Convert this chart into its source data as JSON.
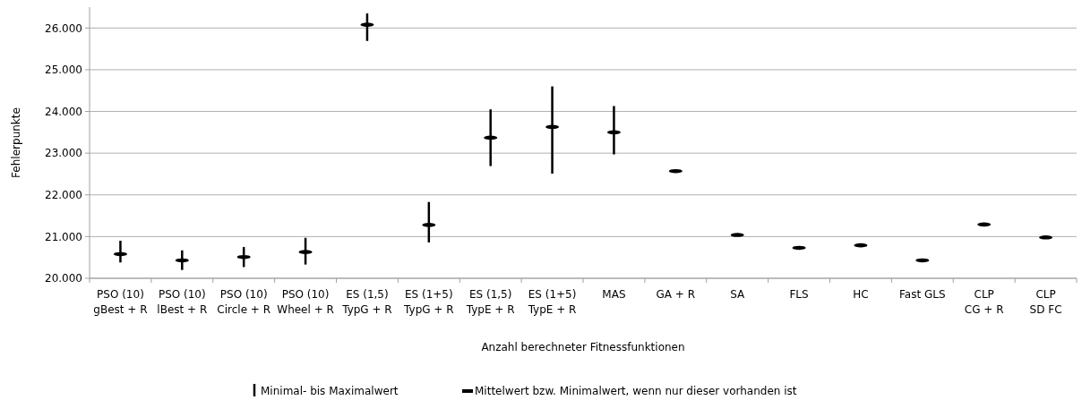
{
  "chart_data": {
    "type": "scatter",
    "xlabel": "Anzahl berechneter Fitnessfunktionen",
    "ylabel": "Fehlerpunkte",
    "categories": [
      "PSO (10)\ngBest + R",
      "PSO (10)\nlBest + R",
      "PSO (10)\nCircle + R",
      "PSO (10)\nWheel + R",
      "ES (1,5)\nTypG + R",
      "ES (1+5)\nTypG + R",
      "ES (1,5)\nTypE + R",
      "ES (1+5)\nTypE + R",
      "MAS",
      "GA + R",
      "SA",
      "FLS",
      "HC",
      "Fast GLS",
      "CLP\nCG + R",
      "CLP\nSD FC"
    ],
    "series": [
      {
        "name": "Mittelwert bzw. Minimalwert, wenn nur dieser vorhanden ist",
        "color": "#000000",
        "values": [
          20580,
          20430,
          20510,
          20630,
          26080,
          21280,
          23370,
          23630,
          23500,
          22570,
          21040,
          20730,
          20790,
          20430,
          21290,
          20980
        ],
        "errors": [
          [
            20380,
            20900
          ],
          [
            20200,
            20670
          ],
          [
            20270,
            20750
          ],
          [
            20330,
            20970
          ],
          [
            25690,
            26350
          ],
          [
            20860,
            21830
          ],
          [
            22690,
            24050
          ],
          [
            22510,
            24600
          ],
          [
            22970,
            24130
          ],
          null,
          null,
          null,
          null,
          null,
          null,
          null
        ]
      }
    ],
    "annotations": [
      "Minimal- bis Maximalwert"
    ],
    "ylim": [
      20000,
      26500
    ],
    "yticks": [
      {
        "value": 20000,
        "label": "20.000"
      },
      {
        "value": 21000,
        "label": "21.000"
      },
      {
        "value": 22000,
        "label": "22.000"
      },
      {
        "value": 23000,
        "label": "23.000"
      },
      {
        "value": 24000,
        "label": "24.000"
      },
      {
        "value": 25000,
        "label": "25.000"
      },
      {
        "value": 26000,
        "label": "26.000"
      }
    ],
    "grid": "y",
    "legend": "bottom"
  }
}
